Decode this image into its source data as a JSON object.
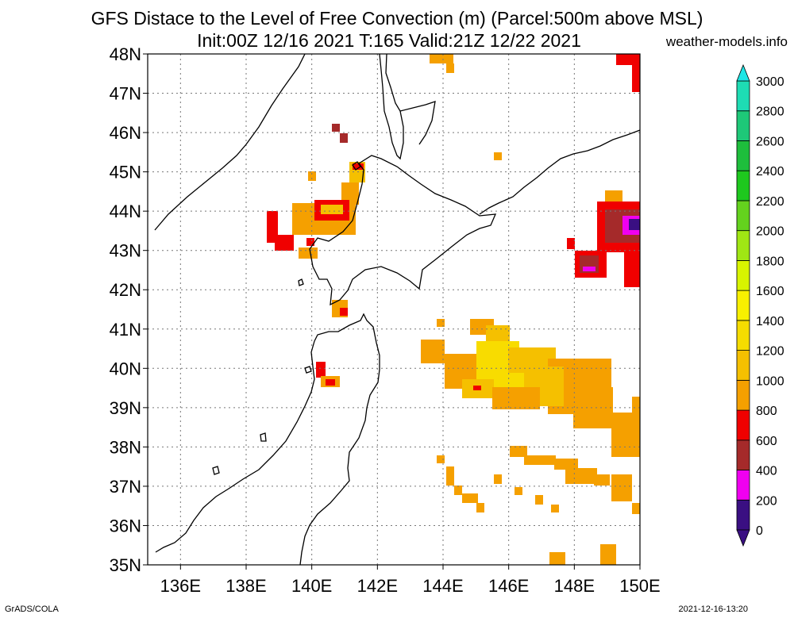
{
  "title": "GFS Distace to the Level of Free Convection (m) (Parcel:500m above MSL)",
  "subtitle": "Init:00Z 12/16 2021 T:165 Valid:21Z 12/22 2021",
  "site": "weather-models.info",
  "footer_left": "GrADS/COLA",
  "footer_right": "2021-12-16-13:20",
  "map": {
    "lat_labels": [
      "48N",
      "47N",
      "46N",
      "45N",
      "44N",
      "43N",
      "42N",
      "41N",
      "40N",
      "39N",
      "38N",
      "37N",
      "36N",
      "35N"
    ],
    "lon_labels": [
      "136E",
      "138E",
      "140E",
      "142E",
      "144E",
      "146E",
      "148E",
      "150E"
    ]
  },
  "colorbar": {
    "levels": [
      "0",
      "200",
      "400",
      "600",
      "800",
      "1000",
      "1200",
      "1400",
      "1600",
      "1800",
      "2000",
      "2200",
      "2400",
      "2600",
      "2800",
      "3000"
    ],
    "colors": [
      "#3a0f82",
      "#f000f0",
      "#a52a2a",
      "#f00000",
      "#f5a000",
      "#f5c000",
      "#f5dc00",
      "#f8f000",
      "#d8f400",
      "#a0e614",
      "#64d21e",
      "#1ec81e",
      "#1ebe3c",
      "#1ec878",
      "#1edcb4",
      "#1ee6e6"
    ]
  }
}
